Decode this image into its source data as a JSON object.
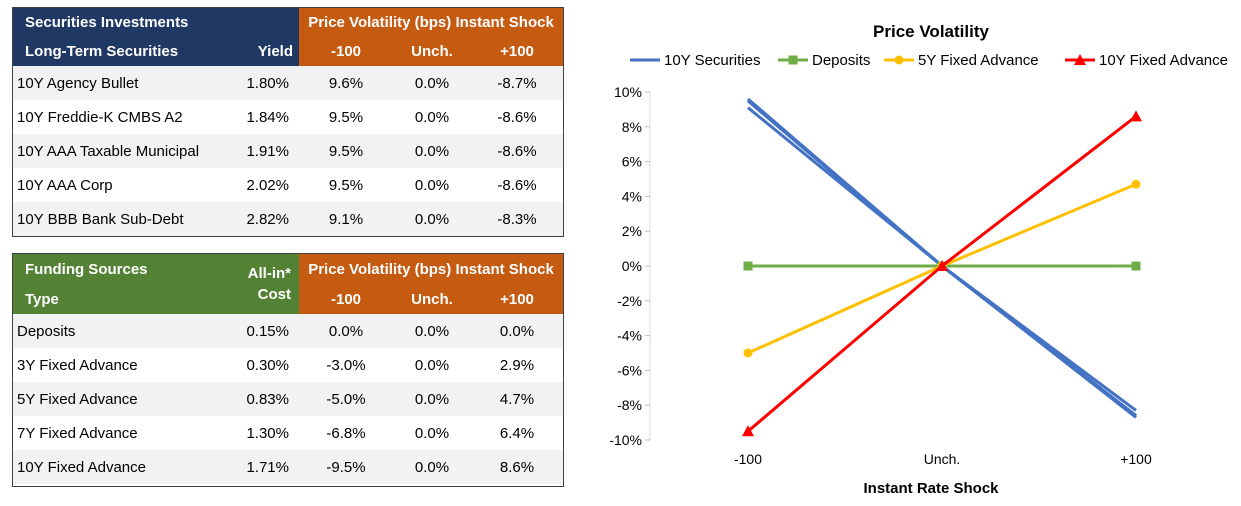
{
  "securities": {
    "title": "Securities Investments",
    "band_title": "Price Volatility (bps) Instant Shock",
    "col_type": "Long-Term Securities",
    "col_rate": "Yield",
    "col_minus": "-100",
    "col_unch": "Unch.",
    "col_plus": "+100",
    "rows": [
      {
        "name": "10Y Agency Bullet",
        "rate": "1.80%",
        "minus": "9.6%",
        "unch": "0.0%",
        "plus": "-8.7%"
      },
      {
        "name": "10Y Freddie-K CMBS A2",
        "rate": "1.84%",
        "minus": "9.5%",
        "unch": "0.0%",
        "plus": "-8.6%"
      },
      {
        "name": "10Y AAA Taxable Municipal",
        "rate": "1.91%",
        "minus": "9.5%",
        "unch": "0.0%",
        "plus": "-8.6%"
      },
      {
        "name": "10Y AAA Corp",
        "rate": "2.02%",
        "minus": "9.5%",
        "unch": "0.0%",
        "plus": "-8.6%"
      },
      {
        "name": "10Y BBB Bank Sub-Debt",
        "rate": "2.82%",
        "minus": "9.1%",
        "unch": "0.0%",
        "plus": "-8.3%"
      }
    ]
  },
  "funding": {
    "title": "Funding Sources",
    "band_title": "Price Volatility (bps) Instant Shock",
    "col_type": "Type",
    "col_rate_1": "All-in*",
    "col_rate_2": "Cost",
    "col_minus": "-100",
    "col_unch": "Unch.",
    "col_plus": "+100",
    "rows": [
      {
        "name": "Deposits",
        "rate": "0.15%",
        "minus": "0.0%",
        "unch": "0.0%",
        "plus": "0.0%"
      },
      {
        "name": "3Y Fixed Advance",
        "rate": "0.30%",
        "minus": "-3.0%",
        "unch": "0.0%",
        "plus": "2.9%"
      },
      {
        "name": "5Y Fixed Advance",
        "rate": "0.83%",
        "minus": "-5.0%",
        "unch": "0.0%",
        "plus": "4.7%"
      },
      {
        "name": "7Y Fixed Advance",
        "rate": "1.30%",
        "minus": "-6.8%",
        "unch": "0.0%",
        "plus": "6.4%"
      },
      {
        "name": "10Y Fixed Advance",
        "rate": "1.71%",
        "minus": "-9.5%",
        "unch": "0.0%",
        "plus": "8.6%"
      }
    ]
  },
  "colors": {
    "navy": "#1f3864",
    "orange": "#c55a11",
    "green": "#548235",
    "series_blue": "#4472c4",
    "series_green": "#70ad47",
    "series_yellow": "#ffc000",
    "series_red": "#ff0000"
  },
  "chart_data": {
    "type": "line",
    "title": "Price Volatility",
    "xlabel": "Instant Rate Shock",
    "ylabel": "",
    "categories": [
      "-100",
      "Unch.",
      "+100"
    ],
    "ylim": [
      -10,
      10
    ],
    "yticks": [
      10,
      8,
      6,
      4,
      2,
      0,
      -2,
      -4,
      -6,
      -8,
      -10
    ],
    "ytick_labels": [
      "10%",
      "8%",
      "6%",
      "4%",
      "2%",
      "0%",
      "-2%",
      "-4%",
      "-6%",
      "-8%",
      "-10%"
    ],
    "legend_position": "top",
    "grid": false,
    "series": [
      {
        "name": "10Y Securities",
        "color": "#4472c4",
        "marker": "none",
        "values": [
          9.6,
          0,
          -8.7
        ],
        "legend": true
      },
      {
        "name": "",
        "color": "#4472c4",
        "marker": "none",
        "values": [
          9.5,
          0,
          -8.6
        ],
        "legend": false
      },
      {
        "name": "",
        "color": "#4472c4",
        "marker": "none",
        "values": [
          9.5,
          0,
          -8.6
        ],
        "legend": false
      },
      {
        "name": "",
        "color": "#4472c4",
        "marker": "none",
        "values": [
          9.5,
          0,
          -8.6
        ],
        "legend": false
      },
      {
        "name": "",
        "color": "#4472c4",
        "marker": "none",
        "values": [
          9.1,
          0,
          -8.3
        ],
        "legend": false
      },
      {
        "name": "Deposits",
        "color": "#70ad47",
        "marker": "square",
        "values": [
          0,
          0,
          0
        ],
        "legend": true
      },
      {
        "name": "5Y Fixed Advance",
        "color": "#ffc000",
        "marker": "circle",
        "values": [
          -5.0,
          0,
          4.7
        ],
        "legend": true
      },
      {
        "name": "10Y Fixed Advance",
        "color": "#ff0000",
        "marker": "triangle",
        "values": [
          -9.5,
          0,
          8.6
        ],
        "legend": true
      }
    ]
  }
}
